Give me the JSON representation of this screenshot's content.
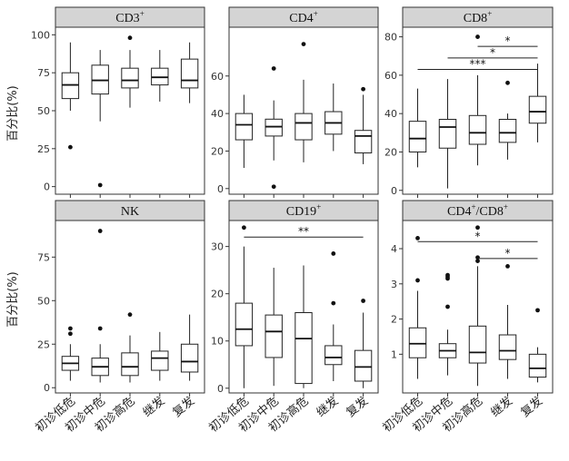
{
  "y_axis_label": "百分比(%)",
  "categories": [
    "初诊低危",
    "初诊中危",
    "初诊高危",
    "继发",
    "复发"
  ],
  "chart_data": [
    {
      "type": "boxplot",
      "title": "CD3",
      "title_sup": "+",
      "ylim": [
        -5,
        105
      ],
      "yticks": [
        0,
        25,
        50,
        75,
        100
      ],
      "boxes": [
        {
          "category": "初诊低危",
          "min": 50,
          "q1": 58,
          "median": 67,
          "q3": 75,
          "max": 95,
          "outliers": [
            26
          ]
        },
        {
          "category": "初诊中危",
          "min": 43,
          "q1": 61,
          "median": 70,
          "q3": 80,
          "max": 90,
          "outliers": [
            1
          ]
        },
        {
          "category": "初诊高危",
          "min": 52,
          "q1": 65,
          "median": 70,
          "q3": 78,
          "max": 90,
          "outliers": [
            98
          ]
        },
        {
          "category": "继发",
          "min": 56,
          "q1": 67,
          "median": 72,
          "q3": 78,
          "max": 90,
          "outliers": []
        },
        {
          "category": "复发",
          "min": 55,
          "q1": 65,
          "median": 70,
          "q3": 84,
          "max": 95,
          "outliers": []
        }
      ],
      "significance": []
    },
    {
      "type": "boxplot",
      "title": "CD4",
      "title_sup": "+",
      "ylim": [
        -3,
        86
      ],
      "yticks": [
        0,
        20,
        40,
        60
      ],
      "boxes": [
        {
          "category": "初诊低危",
          "min": 11,
          "q1": 26,
          "median": 34,
          "q3": 40,
          "max": 50,
          "outliers": []
        },
        {
          "category": "初诊中危",
          "min": 15,
          "q1": 28,
          "median": 33,
          "q3": 37,
          "max": 47,
          "outliers": [
            64,
            1
          ]
        },
        {
          "category": "初诊高危",
          "min": 14,
          "q1": 26,
          "median": 35,
          "q3": 40,
          "max": 58,
          "outliers": [
            77
          ]
        },
        {
          "category": "继发",
          "min": 20,
          "q1": 29,
          "median": 35,
          "q3": 41,
          "max": 56,
          "outliers": []
        },
        {
          "category": "复发",
          "min": 13,
          "q1": 19,
          "median": 28,
          "q3": 31,
          "max": 50,
          "outliers": [
            53
          ]
        }
      ],
      "significance": []
    },
    {
      "type": "boxplot",
      "title": "CD8",
      "title_sup": "+",
      "ylim": [
        -2,
        85
      ],
      "yticks": [
        0,
        20,
        40,
        60,
        80
      ],
      "boxes": [
        {
          "category": "初诊低危",
          "min": 12,
          "q1": 20,
          "median": 27,
          "q3": 36,
          "max": 53,
          "outliers": []
        },
        {
          "category": "初诊中危",
          "min": 1,
          "q1": 22,
          "median": 33,
          "q3": 37,
          "max": 58,
          "outliers": []
        },
        {
          "category": "初诊高危",
          "min": 13,
          "q1": 24,
          "median": 30,
          "q3": 39,
          "max": 60,
          "outliers": [
            80
          ]
        },
        {
          "category": "继发",
          "min": 16,
          "q1": 25,
          "median": 30,
          "q3": 37,
          "max": 40,
          "outliers": [
            56
          ]
        },
        {
          "category": "复发",
          "min": 25,
          "q1": 35,
          "median": 41,
          "q3": 49,
          "max": 66,
          "outliers": []
        }
      ],
      "significance": [
        {
          "from": 2,
          "to": 4,
          "y": 75,
          "label": "*"
        },
        {
          "from": 1,
          "to": 4,
          "y": 69,
          "label": "*"
        },
        {
          "from": 0,
          "to": 4,
          "y": 63,
          "label": "***"
        }
      ]
    },
    {
      "type": "boxplot",
      "title": "NK",
      "title_sup": "",
      "ylim": [
        -3,
        96
      ],
      "yticks": [
        0,
        25,
        50,
        75
      ],
      "boxes": [
        {
          "category": "初诊低危",
          "min": 4,
          "q1": 10,
          "median": 14,
          "q3": 18,
          "max": 25,
          "outliers": [
            34,
            31
          ]
        },
        {
          "category": "初诊中危",
          "min": 3,
          "q1": 7,
          "median": 12,
          "q3": 17,
          "max": 25,
          "outliers": [
            90,
            34
          ]
        },
        {
          "category": "初诊高危",
          "min": 3,
          "q1": 7,
          "median": 12,
          "q3": 20,
          "max": 30,
          "outliers": [
            42
          ]
        },
        {
          "category": "继发",
          "min": 4,
          "q1": 10,
          "median": 17,
          "q3": 21,
          "max": 32,
          "outliers": []
        },
        {
          "category": "复发",
          "min": 4,
          "q1": 9,
          "median": 15,
          "q3": 25,
          "max": 42,
          "outliers": []
        }
      ],
      "significance": []
    },
    {
      "type": "boxplot",
      "title": "CD19",
      "title_sup": "+",
      "ylim": [
        -1,
        35.5
      ],
      "yticks": [
        0,
        10,
        20,
        30
      ],
      "boxes": [
        {
          "category": "初诊低危",
          "min": 0,
          "q1": 9,
          "median": 12.5,
          "q3": 18,
          "max": 30,
          "outliers": [
            34
          ]
        },
        {
          "category": "初诊中危",
          "min": 0.5,
          "q1": 6.5,
          "median": 12,
          "q3": 15.5,
          "max": 25.5,
          "outliers": []
        },
        {
          "category": "初诊高危",
          "min": 0,
          "q1": 1,
          "median": 10.5,
          "q3": 16,
          "max": 26,
          "outliers": []
        },
        {
          "category": "继发",
          "min": 1.5,
          "q1": 5,
          "median": 6.5,
          "q3": 9,
          "max": 13.5,
          "outliers": [
            28.5,
            18
          ]
        },
        {
          "category": "复发",
          "min": 0,
          "q1": 1.5,
          "median": 4.5,
          "q3": 8,
          "max": 16,
          "outliers": [
            18.5
          ]
        }
      ],
      "significance": [
        {
          "from": 0,
          "to": 4,
          "y": 32,
          "label": "**"
        }
      ]
    },
    {
      "type": "boxplot",
      "title": "CD4",
      "title_sup": "+",
      "title_mid": "/CD8",
      "title_sup2": "+",
      "ylim": [
        -0.1,
        4.8
      ],
      "yticks": [
        1,
        2,
        3,
        4
      ],
      "boxes": [
        {
          "category": "初诊低危",
          "min": 0.3,
          "q1": 0.9,
          "median": 1.3,
          "q3": 1.75,
          "max": 2.8,
          "outliers": [
            4.3,
            3.1
          ]
        },
        {
          "category": "初诊中危",
          "min": 0.4,
          "q1": 0.9,
          "median": 1.1,
          "q3": 1.3,
          "max": 1.7,
          "outliers": [
            3.25,
            3.2,
            3.15,
            2.35
          ]
        },
        {
          "category": "初诊高危",
          "min": 0.1,
          "q1": 0.75,
          "median": 1.05,
          "q3": 1.8,
          "max": 3.5,
          "outliers": [
            4.6,
            3.75,
            3.65
          ]
        },
        {
          "category": "继发",
          "min": 0.3,
          "q1": 0.85,
          "median": 1.1,
          "q3": 1.55,
          "max": 2.4,
          "outliers": [
            3.5
          ]
        },
        {
          "category": "复发",
          "min": 0.2,
          "q1": 0.35,
          "median": 0.6,
          "q3": 1.0,
          "max": 1.2,
          "outliers": [
            2.25
          ]
        }
      ],
      "significance": [
        {
          "from": 0,
          "to": 4,
          "y": 4.2,
          "label": "*"
        },
        {
          "from": 2,
          "to": 4,
          "y": 3.72,
          "label": "*"
        }
      ]
    }
  ]
}
